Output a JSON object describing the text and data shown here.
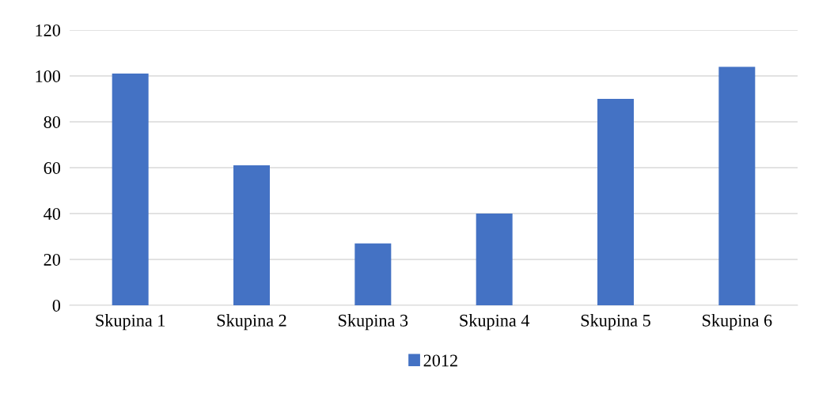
{
  "chart_data": {
    "type": "bar",
    "categories": [
      "Skupina 1",
      "Skupina 2",
      "Skupina 3",
      "Skupina 4",
      "Skupina 5",
      "Skupina 6"
    ],
    "series": [
      {
        "name": "2012",
        "color": "#4472c4",
        "values": [
          101,
          61,
          27,
          40,
          90,
          104
        ]
      }
    ],
    "ylim": [
      0,
      120
    ],
    "yticks": [
      0,
      20,
      40,
      60,
      80,
      100,
      120
    ],
    "grid": "y",
    "legend": "bottom"
  }
}
